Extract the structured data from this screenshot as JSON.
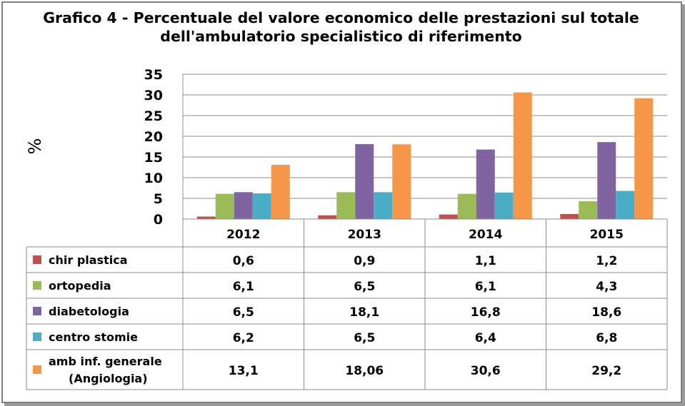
{
  "title_line1": "Grafico 4 - Percentuale del valore economico delle prestazioni sul totale",
  "title_line2": "dell'ambulatorio specialistico di riferimento",
  "chart_data": {
    "type": "bar",
    "title": "Grafico 4 - Percentuale del valore economico delle prestazioni sul totale dell'ambulatorio specialistico di riferimento",
    "ylabel": "%",
    "xlabel": "",
    "ylim": [
      0,
      35
    ],
    "yticks": [
      "0",
      "5",
      "10",
      "15",
      "20",
      "25",
      "30",
      "35"
    ],
    "grid": "horizontal",
    "legend": "data-table",
    "categories": [
      "2012",
      "2013",
      "2014",
      "2015"
    ],
    "series": [
      {
        "name": "chir plastica",
        "color": "#c0504d",
        "values": [
          0.6,
          0.9,
          1.1,
          1.2
        ],
        "labels": [
          "0,6",
          "0,9",
          "1,1",
          "1,2"
        ]
      },
      {
        "name": "ortopedia",
        "color": "#9bbb59",
        "values": [
          6.1,
          6.5,
          6.1,
          4.3
        ],
        "labels": [
          "6,1",
          "6,5",
          "6,1",
          "4,3"
        ]
      },
      {
        "name": "diabetologia",
        "color": "#8064a2",
        "values": [
          6.5,
          18.1,
          16.8,
          18.6
        ],
        "labels": [
          "6,5",
          "18,1",
          "16,8",
          "18,6"
        ]
      },
      {
        "name": "centro stomie",
        "color": "#4bacc6",
        "values": [
          6.2,
          6.5,
          6.4,
          6.8
        ],
        "labels": [
          "6,2",
          "6,5",
          "6,4",
          "6,8"
        ]
      },
      {
        "name": "amb inf. generale (Angiologia)",
        "name_lines": [
          "amb inf. generale",
          "(Angiologia)"
        ],
        "color": "#f79646",
        "values": [
          13.1,
          18.06,
          30.6,
          29.2
        ],
        "labels": [
          "13,1",
          "18,06",
          "30,6",
          "29,2"
        ]
      }
    ]
  }
}
